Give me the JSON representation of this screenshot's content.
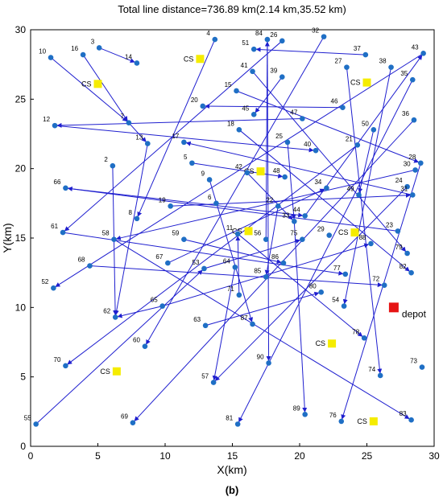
{
  "chart_data": {
    "type": "scatter",
    "title": "Total line distance=736.89 km(2.14 km,35.52 km)",
    "xlabel": "X(km)",
    "ylabel": "Y(km)",
    "xlim": [
      0,
      30
    ],
    "ylim": [
      0,
      30
    ],
    "xticks": [
      0,
      5,
      10,
      15,
      20,
      25,
      30
    ],
    "yticks": [
      0,
      5,
      10,
      15,
      20,
      25,
      30
    ],
    "subfig_label": "(b)",
    "colors": {
      "node": "#1f6fc5",
      "line": "#1f1fcf",
      "cs": "#f5ec00",
      "depot": "#e61414"
    },
    "depot": {
      "label": "depot",
      "x": 27,
      "y": 10
    },
    "charging_stations": [
      {
        "label": "CS",
        "x": 12.6,
        "y": 27.9
      },
      {
        "label": "CS",
        "x": 5.0,
        "y": 26.1
      },
      {
        "label": "CS",
        "x": 17.1,
        "y": 19.8
      },
      {
        "label": "CS",
        "x": 25.0,
        "y": 26.2
      },
      {
        "label": "CS",
        "x": 16.2,
        "y": 15.5
      },
      {
        "label": "CS",
        "x": 24.1,
        "y": 15.4
      },
      {
        "label": "CS",
        "x": 6.4,
        "y": 5.4
      },
      {
        "label": "CS",
        "x": 22.4,
        "y": 7.4
      },
      {
        "label": "CS",
        "x": 25.5,
        "y": 1.8
      }
    ],
    "nodes": [
      {
        "id": "2",
        "x": 6.1,
        "y": 20.2
      },
      {
        "id": "3",
        "x": 5.1,
        "y": 28.7
      },
      {
        "id": "4",
        "x": 13.7,
        "y": 29.3
      },
      {
        "id": "5",
        "x": 12.0,
        "y": 20.4
      },
      {
        "id": "6",
        "x": 13.8,
        "y": 17.5
      },
      {
        "id": "7",
        "x": 7.3,
        "y": 23.3
      },
      {
        "id": "8",
        "x": 7.9,
        "y": 16.4
      },
      {
        "id": "9",
        "x": 13.3,
        "y": 19.2
      },
      {
        "id": "10",
        "x": 1.5,
        "y": 28.0
      },
      {
        "id": "11",
        "x": 15.4,
        "y": 15.3
      },
      {
        "id": "12",
        "x": 1.8,
        "y": 23.1
      },
      {
        "id": "13",
        "x": 8.7,
        "y": 21.8
      },
      {
        "id": "14",
        "x": 7.9,
        "y": 27.6
      },
      {
        "id": "15",
        "x": 15.3,
        "y": 25.6
      },
      {
        "id": "16",
        "x": 3.9,
        "y": 28.2
      },
      {
        "id": "17",
        "x": 11.4,
        "y": 21.9
      },
      {
        "id": "18",
        "x": 15.5,
        "y": 22.8
      },
      {
        "id": "19",
        "x": 10.4,
        "y": 17.3
      },
      {
        "id": "20",
        "x": 12.8,
        "y": 24.5
      },
      {
        "id": "21",
        "x": 24.3,
        "y": 21.7
      },
      {
        "id": "22",
        "x": 18.4,
        "y": 17.3
      },
      {
        "id": "23",
        "x": 27.3,
        "y": 15.5
      },
      {
        "id": "24",
        "x": 28.0,
        "y": 18.7
      },
      {
        "id": "25",
        "x": 19.1,
        "y": 21.9
      },
      {
        "id": "26",
        "x": 18.7,
        "y": 29.2
      },
      {
        "id": "27",
        "x": 23.5,
        "y": 27.3
      },
      {
        "id": "28",
        "x": 29.0,
        "y": 20.4
      },
      {
        "id": "29",
        "x": 22.2,
        "y": 15.2
      },
      {
        "id": "30",
        "x": 28.6,
        "y": 19.9
      },
      {
        "id": "31",
        "x": 28.4,
        "y": 18.1
      },
      {
        "id": "32",
        "x": 21.8,
        "y": 29.5
      },
      {
        "id": "33",
        "x": 19.6,
        "y": 16.2
      },
      {
        "id": "34",
        "x": 22.0,
        "y": 18.6
      },
      {
        "id": "35",
        "x": 28.4,
        "y": 26.4
      },
      {
        "id": "36",
        "x": 28.5,
        "y": 23.5
      },
      {
        "id": "37",
        "x": 24.9,
        "y": 28.2
      },
      {
        "id": "38",
        "x": 26.8,
        "y": 27.3
      },
      {
        "id": "39",
        "x": 18.7,
        "y": 26.6
      },
      {
        "id": "40",
        "x": 21.2,
        "y": 21.3
      },
      {
        "id": "41",
        "x": 16.5,
        "y": 27.0
      },
      {
        "id": "42",
        "x": 16.1,
        "y": 19.7
      },
      {
        "id": "43",
        "x": 29.2,
        "y": 28.3
      },
      {
        "id": "44",
        "x": 20.4,
        "y": 16.6
      },
      {
        "id": "45",
        "x": 16.6,
        "y": 23.9
      },
      {
        "id": "46",
        "x": 23.2,
        "y": 24.4
      },
      {
        "id": "47",
        "x": 20.2,
        "y": 23.6
      },
      {
        "id": "48",
        "x": 18.9,
        "y": 19.4
      },
      {
        "id": "49",
        "x": 24.4,
        "y": 18.1
      },
      {
        "id": "50",
        "x": 25.5,
        "y": 22.8
      },
      {
        "id": "51",
        "x": 16.6,
        "y": 28.6
      },
      {
        "id": "52",
        "x": 1.7,
        "y": 11.4
      },
      {
        "id": "53",
        "x": 12.9,
        "y": 12.8
      },
      {
        "id": "54",
        "x": 23.3,
        "y": 10.1
      },
      {
        "id": "55",
        "x": 0.4,
        "y": 1.6
      },
      {
        "id": "56",
        "x": 17.5,
        "y": 14.9
      },
      {
        "id": "57",
        "x": 13.6,
        "y": 4.6
      },
      {
        "id": "58",
        "x": 6.2,
        "y": 14.9
      },
      {
        "id": "59",
        "x": 11.4,
        "y": 14.9
      },
      {
        "id": "60",
        "x": 8.5,
        "y": 7.2
      },
      {
        "id": "61",
        "x": 2.4,
        "y": 15.4
      },
      {
        "id": "62",
        "x": 6.3,
        "y": 9.3
      },
      {
        "id": "63",
        "x": 13.0,
        "y": 8.7
      },
      {
        "id": "64",
        "x": 15.2,
        "y": 12.9
      },
      {
        "id": "65",
        "x": 9.8,
        "y": 10.1
      },
      {
        "id": "66",
        "x": 2.6,
        "y": 18.6
      },
      {
        "id": "67",
        "x": 10.2,
        "y": 13.2
      },
      {
        "id": "68",
        "x": 4.4,
        "y": 13.0
      },
      {
        "id": "69",
        "x": 7.6,
        "y": 1.7
      },
      {
        "id": "70",
        "x": 2.6,
        "y": 5.8
      },
      {
        "id": "71",
        "x": 15.5,
        "y": 10.9
      },
      {
        "id": "72",
        "x": 26.3,
        "y": 11.6
      },
      {
        "id": "73",
        "x": 29.1,
        "y": 5.7
      },
      {
        "id": "74",
        "x": 26.0,
        "y": 5.1
      },
      {
        "id": "75",
        "x": 20.2,
        "y": 14.9
      },
      {
        "id": "76",
        "x": 23.1,
        "y": 1.8
      },
      {
        "id": "77",
        "x": 23.4,
        "y": 12.4
      },
      {
        "id": "78",
        "x": 24.8,
        "y": 7.8
      },
      {
        "id": "79",
        "x": 28.0,
        "y": 13.9
      },
      {
        "id": "80",
        "x": 21.6,
        "y": 11.1
      },
      {
        "id": "81",
        "x": 15.4,
        "y": 1.6
      },
      {
        "id": "82",
        "x": 28.3,
        "y": 12.5
      },
      {
        "id": "83",
        "x": 28.3,
        "y": 1.9
      },
      {
        "id": "84",
        "x": 17.6,
        "y": 29.3
      },
      {
        "id": "85",
        "x": 17.5,
        "y": 12.2
      },
      {
        "id": "86",
        "x": 18.8,
        "y": 13.2
      },
      {
        "id": "87",
        "x": 16.5,
        "y": 8.8
      },
      {
        "id": "88",
        "x": 25.3,
        "y": 14.6
      },
      {
        "id": "89",
        "x": 20.4,
        "y": 2.3
      },
      {
        "id": "90",
        "x": 17.7,
        "y": 6.0
      }
    ],
    "routes": [
      [
        "4",
        "8"
      ],
      [
        "3",
        "14"
      ],
      [
        "16",
        "7"
      ],
      [
        "10",
        "7"
      ],
      [
        "7",
        "13"
      ],
      [
        "13",
        "62"
      ],
      [
        "2",
        "62"
      ],
      [
        "12",
        "40"
      ],
      [
        "15",
        "28"
      ],
      [
        "41",
        "79"
      ],
      [
        "39",
        "45"
      ],
      [
        "47",
        "12"
      ],
      [
        "37",
        "51"
      ],
      [
        "32",
        "60"
      ],
      [
        "84",
        "90"
      ],
      [
        "26",
        "61"
      ],
      [
        "27",
        "74"
      ],
      [
        "35",
        "81"
      ],
      [
        "43",
        "52"
      ],
      [
        "36",
        "69"
      ],
      [
        "38",
        "54"
      ],
      [
        "46",
        "20"
      ],
      [
        "50",
        "49"
      ],
      [
        "30",
        "58"
      ],
      [
        "28",
        "76"
      ],
      [
        "24",
        "57"
      ],
      [
        "31",
        "17"
      ],
      [
        "21",
        "70"
      ],
      [
        "23",
        "66"
      ],
      [
        "66",
        "44"
      ],
      [
        "18",
        "82"
      ],
      [
        "1",
        "9"
      ],
      [
        "9",
        "87"
      ],
      [
        "5",
        "48"
      ],
      [
        "42",
        "33"
      ],
      [
        "22",
        "85"
      ],
      [
        "19",
        "31"
      ],
      [
        "29",
        "1"
      ],
      [
        "33",
        "89"
      ],
      [
        "44",
        "43"
      ],
      [
        "58",
        "83"
      ],
      [
        "59",
        "86"
      ],
      [
        "61",
        "77"
      ],
      [
        "67",
        "34"
      ],
      [
        "68",
        "72"
      ],
      [
        "65",
        "62"
      ],
      [
        "64",
        "57"
      ],
      [
        "63",
        "80"
      ],
      [
        "71",
        "11"
      ],
      [
        "11",
        "78"
      ],
      [
        "56",
        "84"
      ],
      [
        "53",
        "75"
      ],
      [
        "65",
        "88"
      ],
      [
        "55",
        "53"
      ],
      [
        "25",
        "33"
      ]
    ]
  }
}
